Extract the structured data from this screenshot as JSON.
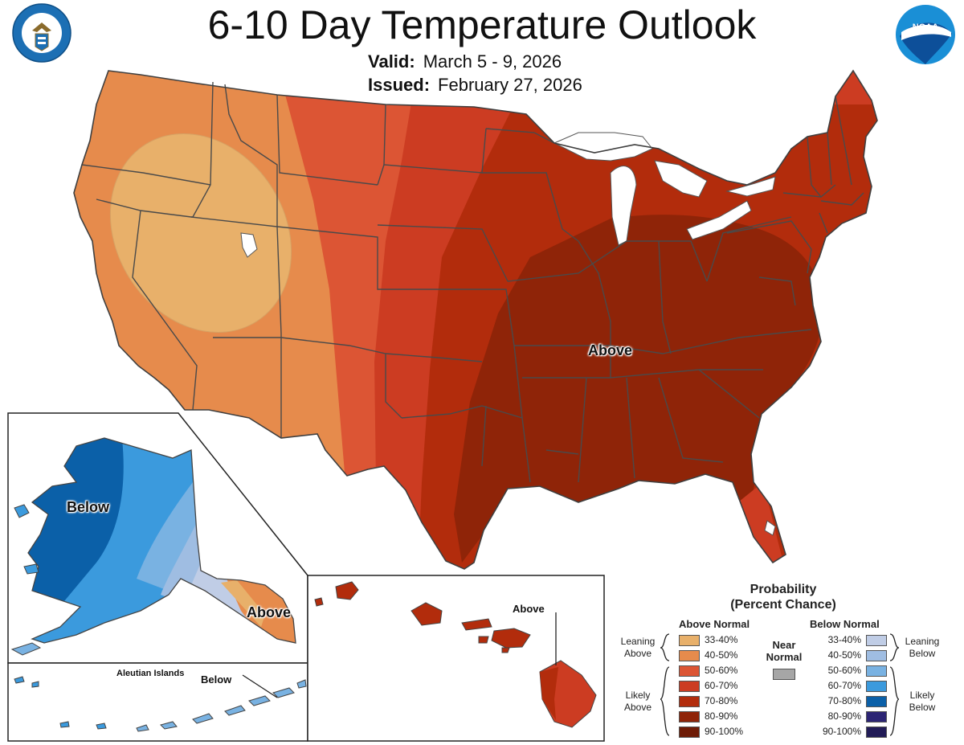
{
  "header": {
    "title": "6-10 Day Temperature Outlook",
    "valid_label": "Valid:",
    "valid_value": "March 5 - 9, 2026",
    "issued_label": "Issued:",
    "issued_value": "February 27, 2026"
  },
  "logos": {
    "left": "department-of-commerce-seal",
    "right": "noaa-logo",
    "noaa_text": "NOAA"
  },
  "map_labels": {
    "conus": "Above",
    "alaska": "Below",
    "alaska_panhandle": "Above",
    "aleutian_title": "Aleutian Islands",
    "aleutian": "Below",
    "hawaii": "Above"
  },
  "legend": {
    "title_line1": "Probability",
    "title_line2": "(Percent Chance)",
    "above_header": "Above Normal",
    "below_header": "Below Normal",
    "near_label_1": "Near",
    "near_label_2": "Normal",
    "near_color": "#a6a6a6",
    "leaning_above_1": "Leaning",
    "leaning_above_2": "Above",
    "likely_above_1": "Likely",
    "likely_above_2": "Above",
    "leaning_below_1": "Leaning",
    "leaning_below_2": "Below",
    "likely_below_1": "Likely",
    "likely_below_2": "Below",
    "above": [
      {
        "label": "33-40%",
        "color": "#e8b06a"
      },
      {
        "label": "40-50%",
        "color": "#e68b4c"
      },
      {
        "label": "50-60%",
        "color": "#dc5534"
      },
      {
        "label": "60-70%",
        "color": "#cc3c22"
      },
      {
        "label": "70-80%",
        "color": "#b22c0c"
      },
      {
        "label": "80-90%",
        "color": "#8f2408"
      },
      {
        "label": "90-100%",
        "color": "#6e1b06"
      }
    ],
    "below": [
      {
        "label": "33-40%",
        "color": "#c0cde6"
      },
      {
        "label": "40-50%",
        "color": "#9fbde2"
      },
      {
        "label": "50-60%",
        "color": "#79b2e2"
      },
      {
        "label": "60-70%",
        "color": "#3b9add"
      },
      {
        "label": "70-80%",
        "color": "#0b60a8"
      },
      {
        "label": "80-90%",
        "color": "#2c2574"
      },
      {
        "label": "90-100%",
        "color": "#221c57"
      }
    ]
  }
}
